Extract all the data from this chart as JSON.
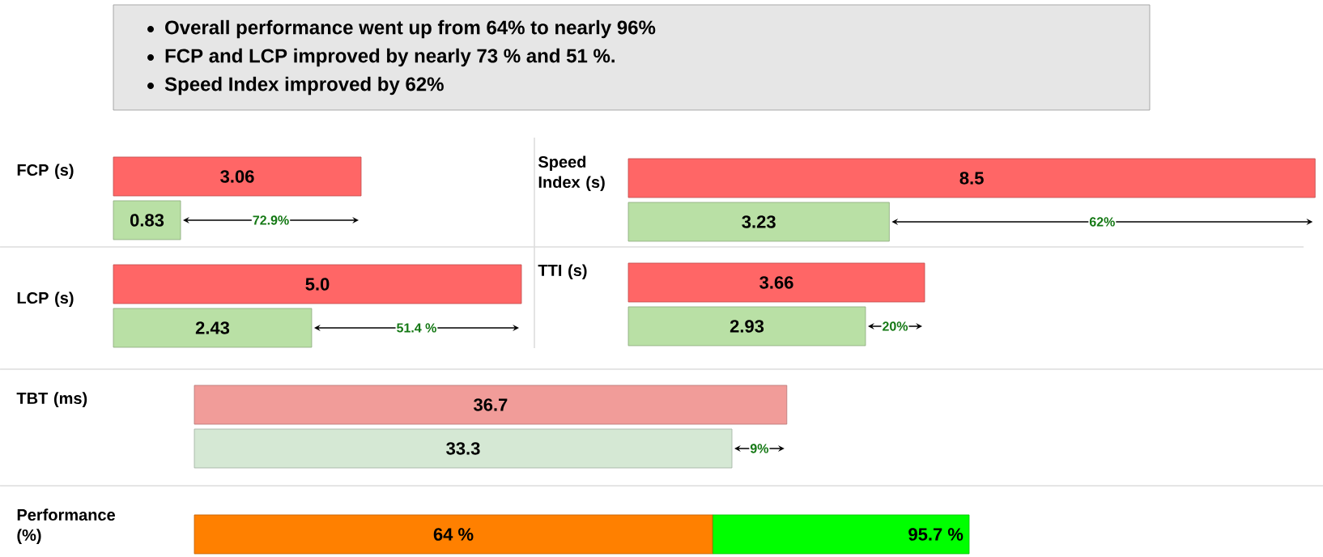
{
  "chart_data": [
    {
      "type": "other",
      "annotations": [
        "Overall performance went up from 64% to nearly 96%",
        "FCP and LCP improved by nearly 73 % and 51 %.",
        "Speed Index improved by 62%"
      ]
    },
    {
      "type": "bar",
      "orientation": "horizontal",
      "ylabel": "FCP (s)",
      "categories": [
        null,
        null
      ],
      "values": [
        3.06,
        0.83
      ],
      "colors": [
        "#ff6666",
        "#b9e0a5"
      ],
      "value_labels": [
        "3.06",
        "0.83"
      ],
      "tick_labels": false,
      "annotations": [
        "72.9%"
      ]
    },
    {
      "type": "bar",
      "orientation": "horizontal",
      "ylabel": "Speed Index (s)",
      "categories": [
        null,
        null
      ],
      "values": [
        8.5,
        3.23
      ],
      "colors": [
        "#ff6666",
        "#b9e0a5"
      ],
      "value_labels": [
        "8.5",
        "3.23"
      ],
      "tick_labels": false,
      "annotations": [
        "62%"
      ]
    },
    {
      "type": "bar",
      "orientation": "horizontal",
      "ylabel": "LCP (s)",
      "categories": [
        null,
        null
      ],
      "values": [
        5.0,
        2.43
      ],
      "colors": [
        "#ff6666",
        "#b9e0a5"
      ],
      "value_labels": [
        "5.0",
        "2.43"
      ],
      "tick_labels": false,
      "annotations": [
        "51.4 %"
      ]
    },
    {
      "type": "bar",
      "orientation": "horizontal",
      "ylabel": "TTI (s)",
      "categories": [
        null,
        null
      ],
      "values": [
        3.66,
        2.93
      ],
      "colors": [
        "#ff6666",
        "#b9e0a5"
      ],
      "value_labels": [
        "3.66",
        "2.93"
      ],
      "tick_labels": false,
      "annotations": [
        "20%"
      ]
    },
    {
      "type": "bar",
      "orientation": "horizontal",
      "ylabel": "TBT (ms)",
      "categories": [
        null,
        null
      ],
      "values": [
        36.7,
        33.3
      ],
      "colors": [
        "#f19c99",
        "#d5e8d4"
      ],
      "value_labels": [
        "36.7",
        "33.3"
      ],
      "tick_labels": false,
      "annotations": [
        "9%"
      ]
    },
    {
      "type": "bar",
      "orientation": "horizontal",
      "ylabel": "Performance (%)",
      "categories": [
        null
      ],
      "tick_labels": false,
      "stacked": true,
      "totals": [
        "95.7 %"
      ],
      "series": [
        {
          "color": "#ff8000",
          "values": [
            64
          ],
          "value_labels": [
            "64 %"
          ]
        },
        {
          "color": "#00ff00",
          "values": [
            31.7
          ]
        }
      ]
    }
  ]
}
